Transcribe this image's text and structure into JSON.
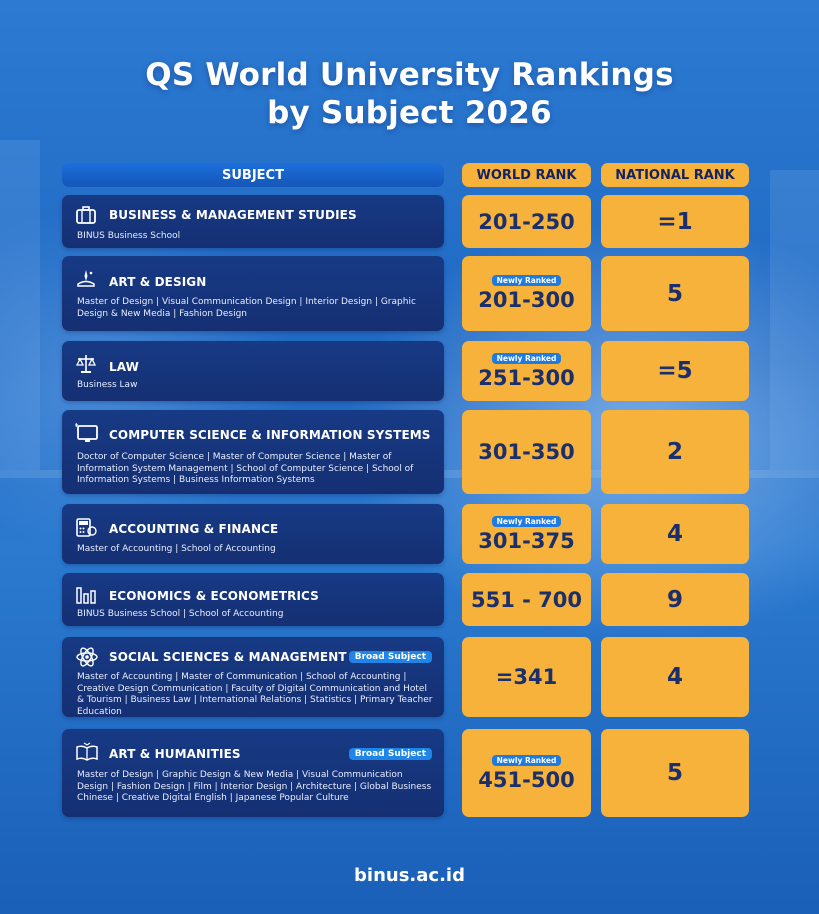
{
  "title_line1": "QS World University Rankings",
  "title_line2": "by Subject 2026",
  "headers": {
    "subject": "SUBJECT",
    "world": "WORLD RANK",
    "national": "NATIONAL RANK"
  },
  "newly_label": "Newly Ranked",
  "broad_label": "Broad Subject",
  "rows": [
    {
      "icon": "briefcase-icon",
      "name": "BUSINESS & MANAGEMENT STUDIES",
      "desc": "BINUS Business School",
      "world": "201-250",
      "national": "=1"
    },
    {
      "icon": "art-design-icon",
      "name": "ART & DESIGN",
      "desc": "Master of Design | Visual Communication Design | Interior Design | Graphic Design & New Media | Fashion Design",
      "world": "201-300",
      "national": "5"
    },
    {
      "icon": "scales-icon",
      "name": "LAW",
      "desc": "Business Law",
      "world": "251-300",
      "national": "=5"
    },
    {
      "icon": "monitor-icon",
      "name": "COMPUTER SCIENCE & INFORMATION SYSTEMS",
      "desc": "Doctor of Computer Science | Master of Computer Science | Master of Information System Management | School of Computer Science | School of Information Systems | Business Information Systems",
      "world": "301-350",
      "national": "2"
    },
    {
      "icon": "calculator-icon",
      "name": "ACCOUNTING & FINANCE",
      "desc": "Master of Accounting | School of Accounting",
      "world": "301-375",
      "national": "4"
    },
    {
      "icon": "bar-chart-icon",
      "name": "ECONOMICS & ECONOMETRICS",
      "desc": "BINUS Business School | School of Accounting",
      "world": "551 - 700",
      "national": "9"
    },
    {
      "icon": "atom-icon",
      "name": "SOCIAL SCIENCES &  MANAGEMENT",
      "desc": "Master of Accounting | Master of Communication | School of Accounting | Creative Design Communication | Faculty of Digital Communication and Hotel & Tourism | Business Law | International Relations | Statistics | Primary Teacher Education",
      "world": "=341",
      "national": "4"
    },
    {
      "icon": "open-book-icon",
      "name": "ART & HUMANITIES",
      "desc": "Master of Design | Graphic Design & New Media | Visual Communication Design | Fashion Design | Film | Interior Design | Architecture | Global Business Chinese | Creative Digital English | Japanese Popular Culture",
      "world": "451-500",
      "national": "5"
    }
  ],
  "footer": "binus.ac.id",
  "colors": {
    "rank_bg": "#f7b23c",
    "card_bg": "#173a85",
    "badge": "#1f7be0"
  }
}
